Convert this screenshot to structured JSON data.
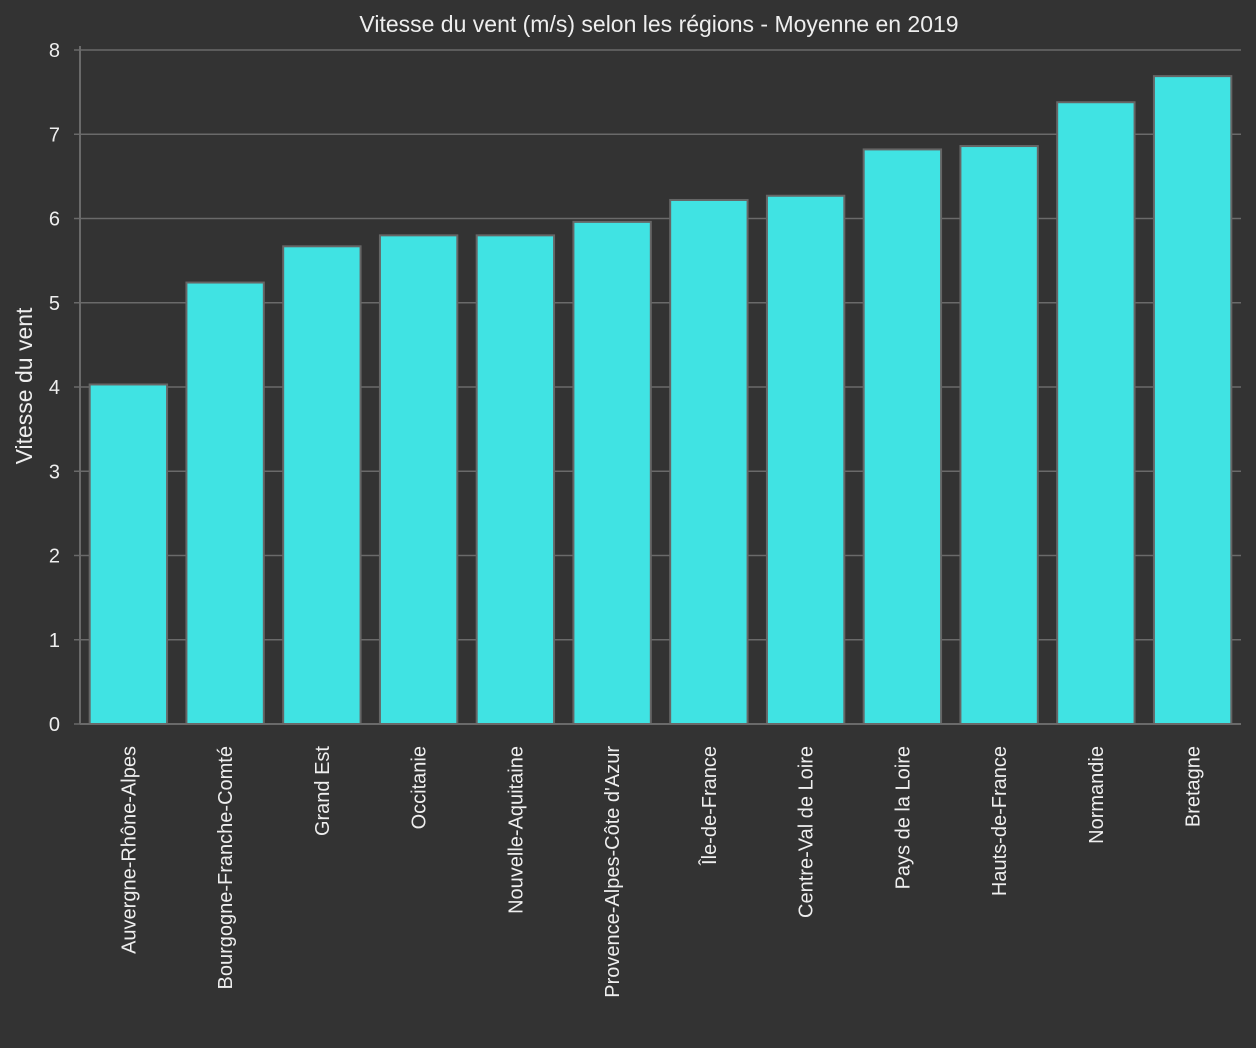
{
  "chart_data": {
    "type": "bar",
    "title": "Vitesse du vent (m/s) selon les régions - Moyenne en 2019",
    "xlabel": "",
    "ylabel": "Vitesse du vent",
    "categories": [
      "Auvergne-Rhône-Alpes",
      "Bourgogne-Franche-Comté",
      "Grand Est",
      "Occitanie",
      "Nouvelle-Aquitaine",
      "Provence-Alpes-Côte d'Azur",
      "Île-de-France",
      "Centre-Val de Loire",
      "Pays de la Loire",
      "Hauts-de-France",
      "Normandie",
      "Bretagne"
    ],
    "values": [
      4.03,
      5.24,
      5.67,
      5.8,
      5.8,
      5.96,
      6.22,
      6.27,
      6.82,
      6.86,
      7.38,
      7.69
    ],
    "ylim": [
      0,
      8
    ],
    "yticks": [
      "0",
      "1",
      "2",
      "3",
      "4",
      "5",
      "6",
      "7",
      "8"
    ],
    "grid": true,
    "colors": {
      "bar_fill": "#40e3e3",
      "bar_edge": "#666666",
      "background": "#333333",
      "grid": "#6a6a6a",
      "text": "#eeeeee"
    }
  }
}
